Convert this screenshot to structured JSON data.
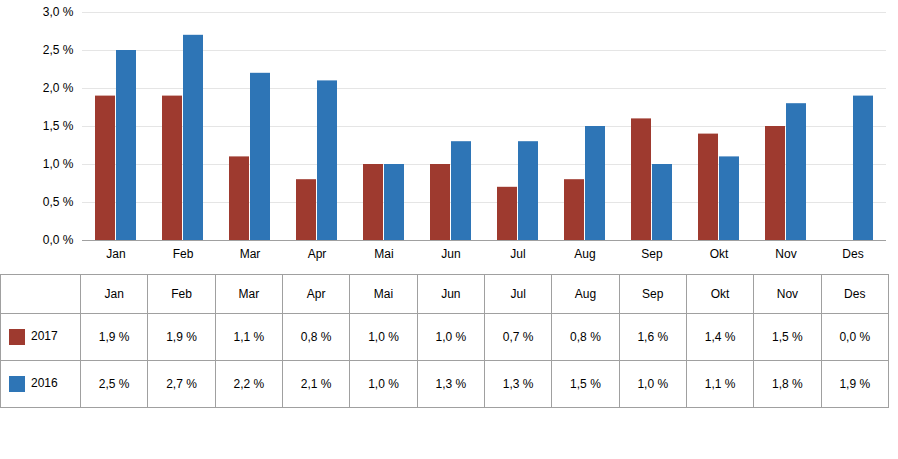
{
  "chart_data": {
    "type": "bar",
    "categories": [
      "Jan",
      "Feb",
      "Mar",
      "Apr",
      "Mai",
      "Jun",
      "Jul",
      "Aug",
      "Sep",
      "Okt",
      "Nov",
      "Des"
    ],
    "series": [
      {
        "name": "2017",
        "color": "#9E3A2F",
        "values": [
          0.019,
          0.019,
          0.011,
          0.008,
          0.01,
          0.01,
          0.007,
          0.008,
          0.016,
          0.014,
          0.015,
          0.0
        ],
        "value_labels": [
          "1,9 %",
          "1,9 %",
          "1,1 %",
          "0,8 %",
          "1,0 %",
          "1,0 %",
          "0,7 %",
          "0,8 %",
          "1,6 %",
          "1,4 %",
          "1,5 %",
          "0,0 %"
        ]
      },
      {
        "name": "2016",
        "color": "#2E75B6",
        "values": [
          0.025,
          0.027,
          0.022,
          0.021,
          0.01,
          0.013,
          0.013,
          0.015,
          0.01,
          0.011,
          0.018,
          0.019
        ],
        "value_labels": [
          "2,5 %",
          "2,7 %",
          "2,2 %",
          "2,1 %",
          "1,0 %",
          "1,3 %",
          "1,3 %",
          "1,5 %",
          "1,0 %",
          "1,1 %",
          "1,8 %",
          "1,9 %"
        ]
      }
    ],
    "ylim": [
      0,
      0.03
    ],
    "yticks": [
      {
        "value": 0.0,
        "label": "0,0 %"
      },
      {
        "value": 0.005,
        "label": "0,5 %"
      },
      {
        "value": 0.01,
        "label": "1,0 %"
      },
      {
        "value": 0.015,
        "label": "1,5 %"
      },
      {
        "value": 0.02,
        "label": "2,0 %"
      },
      {
        "value": 0.025,
        "label": "2,5 %"
      },
      {
        "value": 0.03,
        "label": "3,0 %"
      }
    ],
    "grid": true
  }
}
